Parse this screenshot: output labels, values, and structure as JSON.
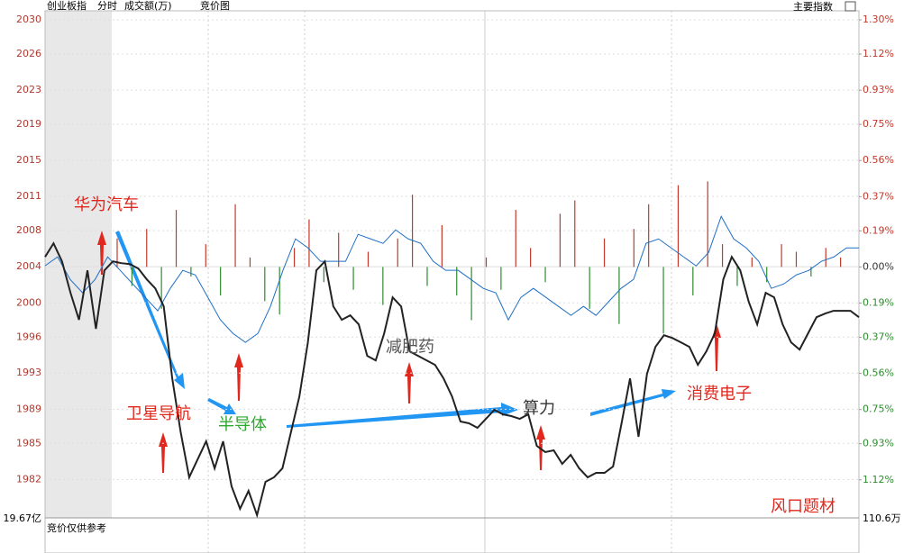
{
  "header": {
    "title": "创业板指",
    "tabs": [
      "分时",
      "成交额(万)",
      "竞价图"
    ],
    "right": "主要指数"
  },
  "footer": {
    "left_value": "19.67亿",
    "note": "竞价仅供参考",
    "right_value": "110.6万",
    "tag": "风口题材"
  },
  "chart_data": {
    "type": "line",
    "ylim": [
      1977.7,
      2031.4
    ],
    "yticks": [
      {
        "value": 2030.25,
        "label": "2030"
      },
      {
        "value": 2026.65,
        "label": "2026"
      },
      {
        "value": 2022.84,
        "label": "2023"
      },
      {
        "value": 2019.23,
        "label": "2019"
      },
      {
        "value": 2015.42,
        "label": "2015"
      },
      {
        "value": 2011.62,
        "label": "2011"
      },
      {
        "value": 2008.01,
        "label": "2008"
      },
      {
        "value": 2004.2,
        "label": "2004"
      },
      {
        "value": 2000.39,
        "label": "2000"
      },
      {
        "value": 1996.78,
        "label": "1996"
      },
      {
        "value": 1992.98,
        "label": "1993"
      },
      {
        "value": 1989.17,
        "label": "1989"
      },
      {
        "value": 1985.56,
        "label": "1985"
      },
      {
        "value": 1981.75,
        "label": "1982"
      }
    ],
    "y2lim": [
      -1.32,
      1.357
    ],
    "y2ticks": [
      {
        "value": 1.3,
        "label": "1.30%"
      },
      {
        "value": 1.12,
        "label": "1.12%"
      },
      {
        "value": 0.93,
        "label": "0.93%"
      },
      {
        "value": 0.75,
        "label": "0.75%"
      },
      {
        "value": 0.56,
        "label": "0.56%"
      },
      {
        "value": 0.37,
        "label": "0.37%"
      },
      {
        "value": 0.19,
        "label": "0.19%"
      },
      {
        "value": 0,
        "label": "0.00%"
      },
      {
        "value": -0.19,
        "label": "0.19%"
      },
      {
        "value": -0.37,
        "label": "0.37%"
      },
      {
        "value": -0.56,
        "label": "0.56%"
      },
      {
        "value": -0.75,
        "label": "0.75%"
      },
      {
        "value": -0.93,
        "label": "0.93%"
      },
      {
        "value": -1.12,
        "label": "1.12%"
      }
    ],
    "up_color": "#c0392b",
    "down_color": "#2e8b2e",
    "series": [
      {
        "color": "#222222",
        "values": [
          2005.24,
          2006.67,
          2004.77,
          2001.45,
          1998.6,
          2003.82,
          1997.65,
          2003.82,
          2004.77,
          2004.58,
          2004.48,
          2004.01,
          2002.87,
          2001.92,
          2000.02,
          1992.42,
          1986.73,
          1981.98,
          1983.88,
          1985.78,
          1982.93,
          1985.78,
          1981.03,
          1978.66,
          1980.55,
          1977.99,
          1981.5,
          1981.98,
          1982.93,
          1986.73,
          1990.52,
          1996.22,
          2003.82,
          2004.77,
          2000.02,
          1998.6,
          1999.07,
          1998.12,
          1994.8,
          1994.32,
          1997.17,
          2000.97,
          2000.02,
          1995.27,
          1994.8,
          1994.32,
          1993.85,
          1992.42,
          1990.52,
          1987.87,
          1987.68,
          1987.2,
          1988.15,
          1989.1,
          1988.63,
          1988.44,
          1988.15,
          1988.63,
          1985.3,
          1984.64,
          1984.83,
          1983.4,
          1984.35,
          1982.93,
          1981.98,
          1982.45,
          1982.45,
          1983.12,
          1987.68,
          1992.42,
          1986.25,
          1992.9,
          1995.75,
          1996.98,
          1996.68,
          1996.22,
          1995.75,
          1993.85,
          1995.27,
          1997.17,
          2002.87,
          2005.24,
          2003.82,
          2000.5,
          1998.12,
          2001.45,
          2000.97,
          1998.12,
          1996.22,
          1995.46,
          1997.17,
          1998.88,
          1999.26,
          1999.55,
          1999.55,
          1999.55,
          1998.88
        ]
      },
      {
        "color": "#1f6fc5",
        "values": [
          2004.3,
          2005.24,
          2002.87,
          2001.45,
          2002.87,
          2005.24,
          2003.82,
          2002.39,
          2000.97,
          1999.55,
          2001.92,
          2003.82,
          2003.34,
          2000.97,
          1998.6,
          1997.17,
          1996.22,
          1997.17,
          2000.02,
          2003.82,
          2007.14,
          2006.19,
          2004.77,
          2004.77,
          2004.77,
          2007.62,
          2007.14,
          2006.67,
          2008.09,
          2007.14,
          2006.67,
          2004.77,
          2003.82,
          2003.82,
          2002.87,
          2001.92,
          2001.45,
          1998.6,
          2000.97,
          2001.92,
          2000.97,
          2000.02,
          1999.07,
          2000.02,
          1999.07,
          2000.5,
          2001.92,
          2002.87,
          2006.67,
          2007.14,
          2006.19,
          2005.24,
          2004.29,
          2005.72,
          2009.52,
          2007.14,
          2006.19,
          2004.77,
          2001.92,
          2002.39,
          2003.34,
          2003.82,
          2004.77,
          2005.24,
          2006.19,
          2006.19
        ]
      },
      {
        "axis": "y2",
        "kind": "bars",
        "values": [
          0.15,
          -0.1,
          0.2,
          -0.22,
          0.3,
          -0.05,
          0.12,
          -0.15,
          0.33,
          0.05,
          -0.18,
          -0.25,
          0.1,
          0.25,
          -0.08,
          0.18,
          -0.12,
          0.08,
          -0.2,
          0.15,
          0.38,
          -0.1,
          0.22,
          -0.15,
          -0.28,
          0.05,
          -0.12,
          0.3,
          0.1,
          -0.08,
          0.28,
          0.35,
          -0.22,
          0.15,
          -0.3,
          0.2,
          0.33,
          -0.35,
          0.43,
          -0.15,
          0.45,
          0.12,
          -0.1,
          0.05,
          -0.08,
          0.12,
          0.08,
          -0.05,
          0.1,
          0.05
        ]
      }
    ],
    "annotations": [
      {
        "text": "华为汽车",
        "color": "#e0281e"
      },
      {
        "text": "卫星导航",
        "color": "#e0281e"
      },
      {
        "text": "半导体",
        "color": "#2ea82e"
      },
      {
        "text": "减肥药",
        "color": "#555555"
      },
      {
        "text": "算力",
        "color": "#333333"
      },
      {
        "text": "消费电子",
        "color": "#e0281e"
      }
    ]
  }
}
